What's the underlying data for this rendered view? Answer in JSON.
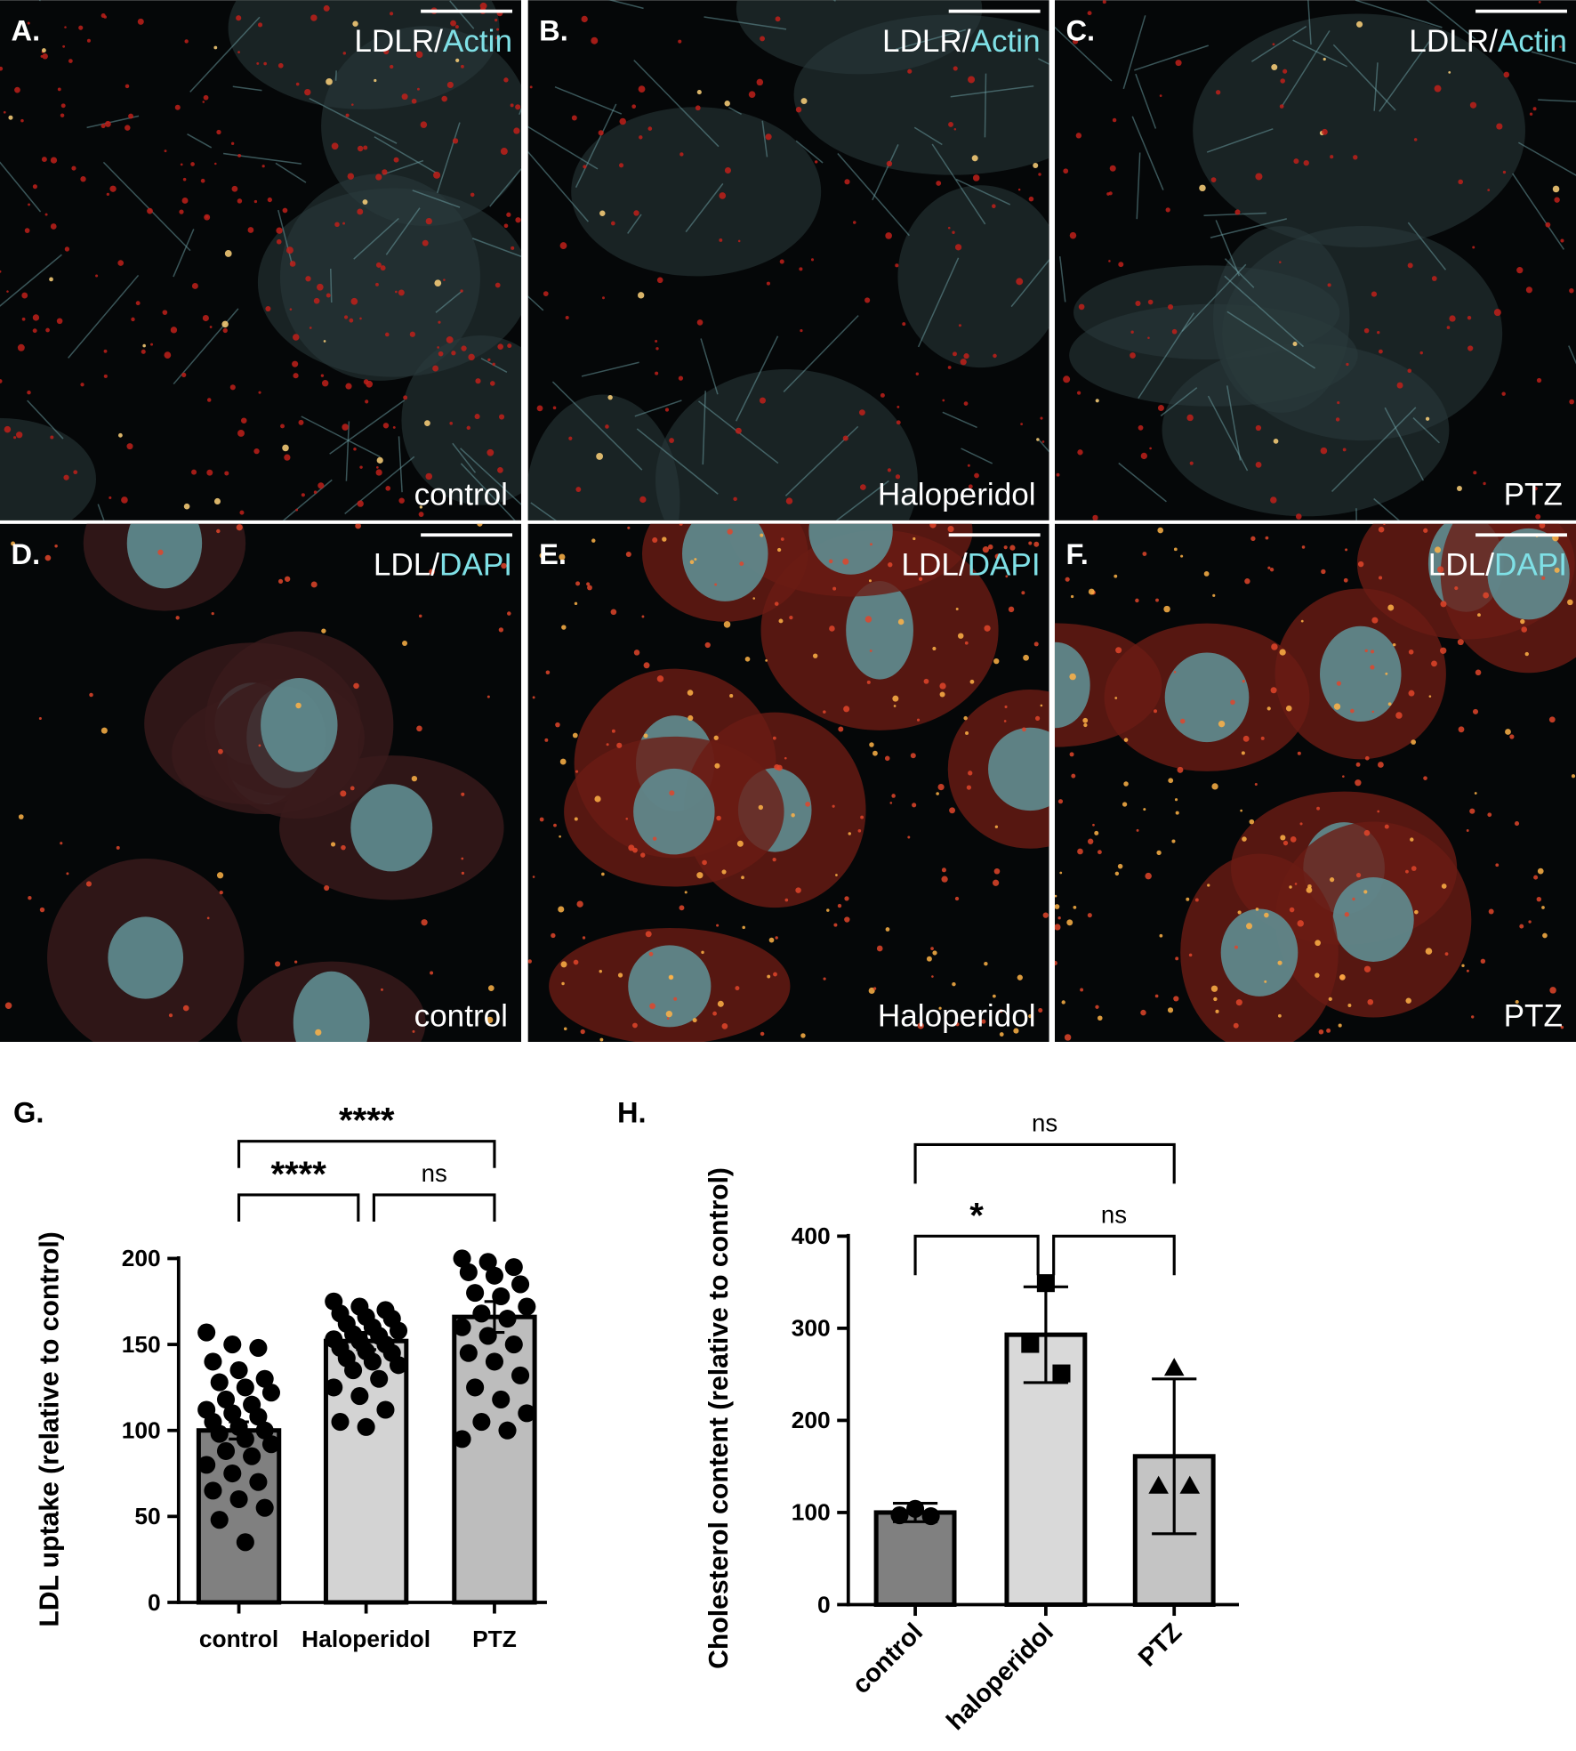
{
  "panels": [
    {
      "letter": "A.",
      "marker": "LDLR/",
      "counterstain": "Actin",
      "condition": "control"
    },
    {
      "letter": "B.",
      "marker": "LDLR/",
      "counterstain": "Actin",
      "condition": "Haloperidol"
    },
    {
      "letter": "C.",
      "marker": "LDLR/",
      "counterstain": "Actin",
      "condition": "PTZ"
    },
    {
      "letter": "D.",
      "marker": "LDL/",
      "counterstain": "DAPI",
      "condition": "control"
    },
    {
      "letter": "E.",
      "marker": "LDL/",
      "counterstain": "DAPI",
      "condition": "Haloperidol"
    },
    {
      "letter": "F.",
      "marker": "LDL/",
      "counterstain": "DAPI",
      "condition": "PTZ"
    }
  ],
  "chart_data": [
    {
      "type": "bar",
      "panel_label": "G.",
      "ylabel": "LDL uptake (relative to control)",
      "categories": [
        "control",
        "Haloperidol",
        "PTZ"
      ],
      "values": [
        100,
        152,
        166
      ],
      "errors": [
        5,
        5,
        9
      ],
      "colors": [
        "#808080",
        "#d3d3d3",
        "#bdbdbd"
      ],
      "point_markers": [
        "circle",
        "circle",
        "circle"
      ],
      "points": [
        [
          157,
          150,
          148,
          140,
          135,
          130,
          128,
          125,
          122,
          118,
          115,
          112,
          110,
          108,
          105,
          102,
          100,
          98,
          95,
          92,
          88,
          85,
          80,
          75,
          70,
          65,
          60,
          55,
          48,
          35
        ],
        [
          175,
          172,
          170,
          168,
          166,
          165,
          162,
          160,
          158,
          156,
          155,
          153,
          152,
          150,
          148,
          146,
          145,
          142,
          140,
          138,
          135,
          130,
          125,
          120,
          112,
          105,
          102
        ],
        [
          200,
          198,
          195,
          192,
          190,
          185,
          180,
          178,
          172,
          168,
          165,
          160,
          155,
          150,
          145,
          140,
          132,
          125,
          118,
          110,
          105,
          100,
          95
        ]
      ],
      "annotations": [
        "****",
        "ns",
        "****"
      ],
      "ylim": [
        0,
        200
      ],
      "yticks": [
        0,
        50,
        100,
        150,
        200
      ]
    },
    {
      "type": "bar",
      "panel_label": "H.",
      "ylabel": "Cholesterol content (relative to control)",
      "categories": [
        "control",
        "haloperidol",
        "PTZ"
      ],
      "values": [
        100,
        293,
        161
      ],
      "errors": [
        10,
        52,
        84
      ],
      "colors": [
        "#808080",
        "#d9d9d9",
        "#c4c4c4"
      ],
      "point_markers": [
        "circle",
        "square",
        "triangle"
      ],
      "points": [
        [
          104,
          97,
          96
        ],
        [
          349,
          283,
          251
        ],
        [
          257,
          129,
          129
        ]
      ],
      "annotations": [
        "*",
        "ns",
        "ns"
      ],
      "ylim": [
        0,
        400
      ],
      "yticks": [
        0,
        100,
        200,
        300,
        400
      ]
    }
  ]
}
